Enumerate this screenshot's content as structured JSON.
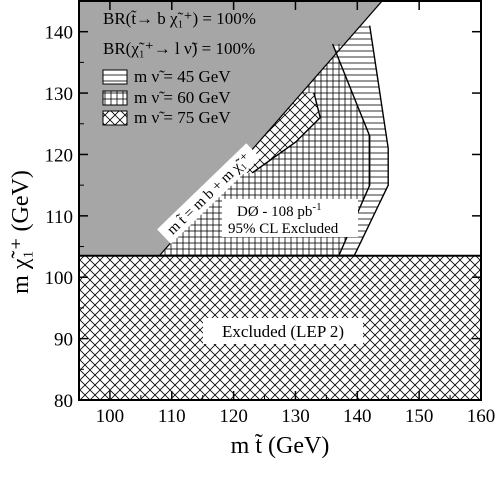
{
  "chart_data": {
    "type": "area",
    "xlabel": "m t̃  (GeV)",
    "ylabel": "m χ̃₁⁺  (GeV)",
    "xlim": [
      95,
      160
    ],
    "ylim": [
      80,
      145
    ],
    "x_ticks": [
      100,
      110,
      120,
      130,
      140,
      150,
      160
    ],
    "y_ticks": [
      80,
      90,
      100,
      110,
      120,
      130,
      140
    ],
    "grid": false,
    "legend_position": "top-left",
    "colors": {
      "kinematic_forbidden": "#a6a6a6",
      "hatch": "#000000",
      "background": "#ffffff"
    },
    "header_lines": [
      "BR(t̃→ b χ̃₁⁺) = 100%",
      "BR(χ̃₁⁺→ l ν̃) = 100%"
    ],
    "lep_limit": {
      "y": 103.5,
      "label": "Excluded (LEP 2)"
    },
    "kinematic_boundary": {
      "label": "m t̃ = m b + m χ̃₁⁺",
      "points": [
        [
          108,
          103.5
        ],
        [
          144,
          145
        ]
      ]
    },
    "experiment_label": {
      "line1": "DØ - 108 pb",
      "superscript": "-1",
      "line2": "95% CL Excluded"
    },
    "series": [
      {
        "name": "m ν̃ = 45 GeV",
        "hatch": "horizontal",
        "points": [
          [
            139.5,
            103.5
          ],
          [
            145,
            115
          ],
          [
            145,
            121
          ],
          [
            142,
            141
          ]
        ]
      },
      {
        "name": "m ν̃ = 60 GeV",
        "hatch": "grid",
        "points": [
          [
            137,
            103.5
          ],
          [
            142,
            115
          ],
          [
            142,
            123
          ],
          [
            140,
            128
          ],
          [
            136,
            138
          ]
        ]
      },
      {
        "name": "m ν̃ = 75 GeV",
        "hatch": "crosshatch",
        "points": [
          [
            123,
            117
          ],
          [
            130,
            122
          ],
          [
            134,
            126
          ],
          [
            133,
            130
          ]
        ]
      }
    ]
  }
}
